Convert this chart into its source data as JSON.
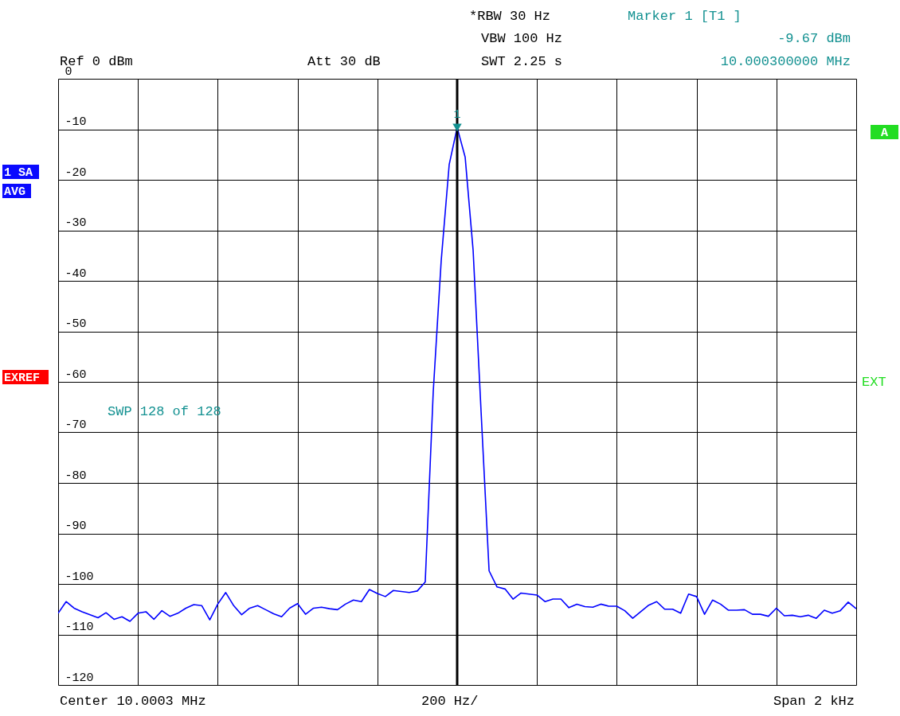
{
  "chart_data": {
    "type": "line",
    "annotations": [
      "Ref  0 dBm",
      "Att  30 dB",
      "*RBW 30 Hz",
      "VBW 100 Hz",
      "SWT 2.25 s",
      "Marker 1 [T1 ]",
      "-9.67 dBm",
      "10.000300000 MHz",
      "1 SA",
      "AVG",
      "EXREF",
      "A",
      "EXT",
      "SWP  128 of  128",
      "Center 10.0003 MHz",
      "200 Hz/",
      "Span 2 kHz",
      {
        "text": "1",
        "y": -9.67
      }
    ],
    "categories": [
      null,
      null,
      null,
      null,
      null,
      null,
      null,
      null,
      null,
      null,
      null,
      null,
      null,
      null,
      null,
      null,
      null,
      null,
      null,
      null,
      null,
      null,
      null,
      null,
      null,
      null,
      null,
      null,
      null,
      null,
      null,
      null,
      null,
      null,
      null,
      null,
      null,
      null,
      null,
      null,
      null,
      null,
      null,
      null,
      null,
      null,
      null,
      null,
      null,
      null,
      null,
      null,
      null,
      null,
      null,
      null,
      null,
      null,
      null,
      null,
      null,
      null,
      null,
      null,
      null,
      null,
      null,
      null,
      null,
      null,
      null,
      null,
      null,
      null,
      null,
      null,
      null,
      null,
      null,
      null,
      null,
      null,
      null,
      null,
      null,
      null,
      null,
      null,
      null,
      null,
      null,
      null,
      null,
      null,
      null,
      null,
      null,
      null,
      null,
      null,
      null
    ],
    "series": [
      {
        "color": "#0000ff",
        "values": [
          -105.8,
          -103.5,
          -104.8,
          -105.5,
          -106.1,
          -106.7,
          -105.7,
          -107.0,
          -106.5,
          -107.4,
          -105.8,
          -105.5,
          -107.0,
          -105.3,
          -106.4,
          -105.8,
          -104.8,
          -104.1,
          -104.3,
          -107.1,
          -104.0,
          -101.7,
          -104.3,
          -106.1,
          -104.8,
          -104.3,
          -105.1,
          -105.9,
          -106.5,
          -104.8,
          -103.9,
          -106.0,
          -104.8,
          -104.6,
          -104.9,
          -105.1,
          -104.0,
          -103.2,
          -103.5,
          -101.1,
          -101.9,
          -102.5,
          -101.3,
          -101.5,
          -101.7,
          -101.4,
          -99.6,
          -62,
          -36,
          -17,
          -9.67,
          -15.5,
          -34,
          -66,
          -97.4,
          -100.6,
          -101.0,
          -103.0,
          -101.8,
          -102.0,
          -102.2,
          -103.5,
          -103.0,
          -103.0,
          -104.7,
          -104.0,
          -104.5,
          -104.6,
          -104.0,
          -104.4,
          -104.4,
          -105.3,
          -106.8,
          -105.5,
          -104.2,
          -103.5,
          -105.0,
          -105.0,
          -105.8,
          -102.0,
          -102.5,
          -106.0,
          -103.2,
          -104.0,
          -105.2,
          -105.2,
          -105.1,
          -106.0,
          -106.0,
          -106.4,
          -104.8,
          -106.3,
          -106.2,
          -106.5,
          -106.2,
          -106.8,
          -105.2,
          -105.8,
          -105.3,
          -103.6,
          -104.9
        ]
      }
    ],
    "ylim": [
      -120,
      0
    ],
    "yticks": [
      -120,
      -110,
      -100,
      -90,
      -80,
      -70,
      -60,
      -50,
      -40,
      -30,
      -20,
      -10,
      0
    ],
    "tick_labels": "y",
    "grid": true
  }
}
